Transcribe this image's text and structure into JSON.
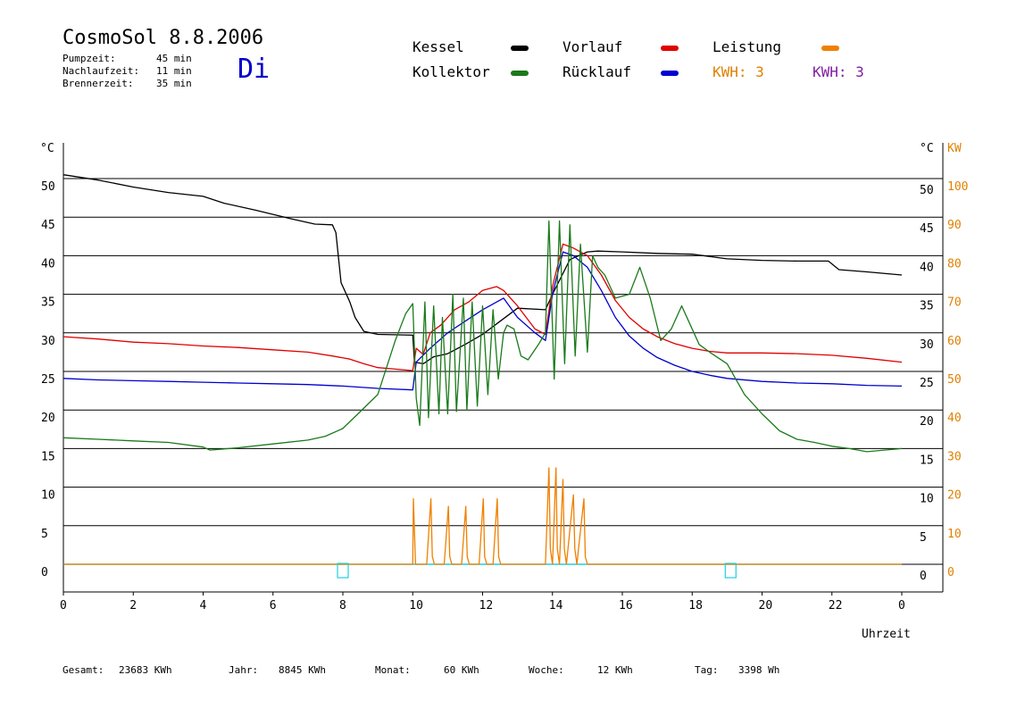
{
  "header": {
    "title": "CosmoSol 8.8.2006",
    "day": "Di",
    "info": [
      {
        "label": "Pumpzeit:",
        "value": "45 min"
      },
      {
        "label": "Nachlaufzeit:",
        "value": "11 min"
      },
      {
        "label": "Brennerzeit:",
        "value": "35 min"
      }
    ]
  },
  "legend": {
    "kessel": {
      "label": "Kessel",
      "color": "#000000"
    },
    "kollektor": {
      "label": "Kollektor",
      "color": "#1a7a1a"
    },
    "vorlauf": {
      "label": "Vorlauf",
      "color": "#e00000"
    },
    "ruecklauf": {
      "label": "Rücklauf",
      "color": "#0000d0"
    },
    "leistung": {
      "label": "Leistung",
      "color": "#f08000"
    },
    "kwh_orange": {
      "label": "KWH: 3",
      "color": "#e08000"
    },
    "kwh_purple": {
      "label": "KWH: 3",
      "color": "#8020a0"
    }
  },
  "footer": {
    "gesamt": {
      "label": "Gesamt:",
      "value": "23683 KWh"
    },
    "jahr": {
      "label": "Jahr:",
      "value": "8845 KWh"
    },
    "monat": {
      "label": "Monat:",
      "value": "60 KWh"
    },
    "woche": {
      "label": "Woche:",
      "value": "12 KWh"
    },
    "tag": {
      "label": "Tag:",
      "value": "3398 Wh"
    }
  },
  "chart_data": {
    "type": "line",
    "xlabel": "Uhrzeit",
    "ylabel_left": "°C",
    "ylabel_right": "°C",
    "ylabel_right2": "KW",
    "xlim": [
      0,
      24
    ],
    "ylim": [
      0,
      50
    ],
    "ylim_kw": [
      0,
      100
    ],
    "x_tick_labels": [
      "0",
      "2",
      "4",
      "6",
      "8",
      "10",
      "12",
      "14",
      "16",
      "18",
      "20",
      "22",
      "0"
    ],
    "y_tick_labels": [
      "0",
      "5",
      "10",
      "15",
      "20",
      "25",
      "30",
      "35",
      "40",
      "45",
      "50"
    ],
    "kw_tick_labels": [
      "0",
      "10",
      "20",
      "30",
      "40",
      "50",
      "60",
      "70",
      "80",
      "90",
      "100"
    ],
    "grid": "horizontal",
    "series": [
      {
        "name": "Kessel",
        "color": "#000000",
        "x": [
          0,
          1,
          2,
          3,
          4,
          4.6,
          5.5,
          6.5,
          7.2,
          7.7,
          7.8,
          7.95,
          8.05,
          8.2,
          8.35,
          8.6,
          9,
          10,
          10.05,
          10.3,
          10.6,
          11,
          11.5,
          12,
          12.5,
          13,
          13.8,
          14,
          14.5,
          15,
          15.3,
          16,
          17,
          18,
          19,
          20,
          21,
          21.9,
          22.2,
          23,
          24
        ],
        "y": [
          50.5,
          49.8,
          48.9,
          48.2,
          47.7,
          46.8,
          45.9,
          44.8,
          44.1,
          44.0,
          43.0,
          36.5,
          35.5,
          34,
          32,
          30.2,
          29.8,
          29.7,
          26.2,
          26.0,
          26.9,
          27.3,
          28.5,
          29.8,
          31.5,
          33.2,
          33.0,
          35.0,
          39.5,
          40.5,
          40.6,
          40.5,
          40.3,
          40.2,
          39.6,
          39.4,
          39.3,
          39.3,
          38.2,
          37.9,
          37.5
        ]
      },
      {
        "name": "Vorlauf",
        "color": "#e00000",
        "x": [
          0,
          1,
          2,
          3,
          4,
          5,
          6,
          7,
          7.7,
          8.2,
          8.6,
          9,
          9.5,
          10,
          10.1,
          10.3,
          10.5,
          10.8,
          11.2,
          11.6,
          12,
          12.4,
          12.6,
          13,
          13.5,
          13.8,
          14,
          14.3,
          14.6,
          15,
          15.4,
          15.8,
          16.2,
          16.6,
          17,
          17.5,
          18,
          18.5,
          19,
          20,
          21,
          22,
          23,
          24
        ],
        "y": [
          29.5,
          29.2,
          28.8,
          28.6,
          28.3,
          28.1,
          27.8,
          27.5,
          27.0,
          26.6,
          26.0,
          25.5,
          25.3,
          25.1,
          28,
          27.2,
          30,
          31,
          33,
          34,
          35.5,
          36,
          35.5,
          33.5,
          30.5,
          29.8,
          36,
          41.5,
          41,
          40,
          37.5,
          34.2,
          32.0,
          30.5,
          29.5,
          28.6,
          28.0,
          27.6,
          27.4,
          27.4,
          27.3,
          27.1,
          26.7,
          26.2
        ]
      },
      {
        "name": "Rücklauf",
        "color": "#0000d0",
        "x": [
          0,
          1,
          2,
          3,
          4,
          5,
          6,
          7,
          8,
          9,
          10,
          10.1,
          10.5,
          11,
          11.5,
          12,
          12.6,
          13,
          13.5,
          13.8,
          14,
          14.3,
          14.6,
          15,
          15.4,
          15.8,
          16.2,
          16.6,
          17,
          17.5,
          18,
          18.5,
          19,
          20,
          21,
          22,
          23,
          24
        ],
        "y": [
          24.1,
          23.9,
          23.8,
          23.7,
          23.6,
          23.5,
          23.4,
          23.3,
          23.1,
          22.8,
          22.6,
          26.2,
          28.0,
          30,
          31.5,
          33,
          34.5,
          32.0,
          30.0,
          29.0,
          35.0,
          40.5,
          40.0,
          38.5,
          35.5,
          32.0,
          29.6,
          28.0,
          26.8,
          25.8,
          25.0,
          24.5,
          24.1,
          23.7,
          23.5,
          23.4,
          23.2,
          23.1
        ]
      },
      {
        "name": "Kollektor",
        "color": "#1a7a1a",
        "x": [
          0,
          1,
          2,
          3,
          4,
          4.2,
          5,
          6,
          7,
          7.5,
          8,
          8.5,
          9,
          9.5,
          9.8,
          10,
          10.1,
          10.2,
          10.35,
          10.45,
          10.6,
          10.75,
          10.85,
          11,
          11.15,
          11.25,
          11.45,
          11.55,
          11.7,
          11.85,
          12,
          12.15,
          12.3,
          12.45,
          12.6,
          12.7,
          12.9,
          13.1,
          13.3,
          13.6,
          13.8,
          13.9,
          14.05,
          14.2,
          14.35,
          14.5,
          14.65,
          14.8,
          15,
          15.15,
          15.3,
          15.5,
          15.8,
          16.2,
          16.5,
          16.8,
          17.1,
          17.4,
          17.7,
          17.9,
          18.2,
          18.5,
          19,
          19.5,
          20,
          20.5,
          21,
          21.5,
          22,
          22.5,
          23,
          23.5,
          24
        ],
        "y": [
          16.4,
          16.2,
          16.0,
          15.8,
          15.2,
          14.8,
          15.1,
          15.6,
          16.1,
          16.6,
          17.6,
          19.8,
          22.0,
          29.0,
          32.5,
          33.8,
          21.5,
          18.0,
          34.0,
          19.0,
          33.5,
          19.5,
          32.0,
          19.5,
          35.0,
          19.8,
          34.5,
          20.0,
          34.0,
          20.5,
          33.5,
          22.0,
          33.0,
          24.0,
          30.0,
          31.0,
          30.5,
          27.0,
          26.5,
          28.5,
          30.0,
          44.5,
          24.0,
          44.5,
          26.0,
          44.0,
          27.0,
          41.5,
          27.5,
          40.0,
          38.5,
          37.5,
          34.5,
          35.0,
          38.5,
          34.5,
          29.0,
          30.5,
          33.5,
          31.5,
          28.5,
          27.5,
          26.0,
          22.0,
          19.5,
          17.3,
          16.2,
          15.8,
          15.3,
          15.0,
          14.6,
          14.8,
          15.0
        ]
      },
      {
        "name": "Leistung",
        "color": "#f08000",
        "x": [
          0,
          10,
          10.02,
          10.08,
          10.4,
          10.52,
          10.56,
          10.62,
          10.9,
          11.02,
          11.06,
          11.12,
          11.4,
          11.52,
          11.56,
          11.62,
          11.9,
          12.02,
          12.06,
          12.12,
          12.3,
          12.42,
          12.46,
          12.52,
          13.8,
          13.9,
          13.94,
          14.0,
          14.1,
          14.14,
          14.2,
          14.3,
          14.34,
          14.4,
          14.6,
          14.64,
          14.7,
          14.9,
          14.94,
          15.0,
          24
        ],
        "y": [
          0,
          0,
          8.5,
          0,
          0,
          8.5,
          1,
          0,
          0,
          7.5,
          1,
          0,
          0,
          7.5,
          1,
          0,
          0,
          8.5,
          1,
          0,
          0,
          8.5,
          1,
          0,
          0,
          12.5,
          2,
          0,
          12.5,
          2,
          0,
          11,
          2,
          0,
          9,
          2,
          0,
          8.5,
          1,
          0,
          0
        ]
      }
    ],
    "markers": [
      {
        "x": 8.0,
        "label": "marker-1"
      },
      {
        "x": 19.1,
        "label": "marker-2"
      }
    ]
  }
}
